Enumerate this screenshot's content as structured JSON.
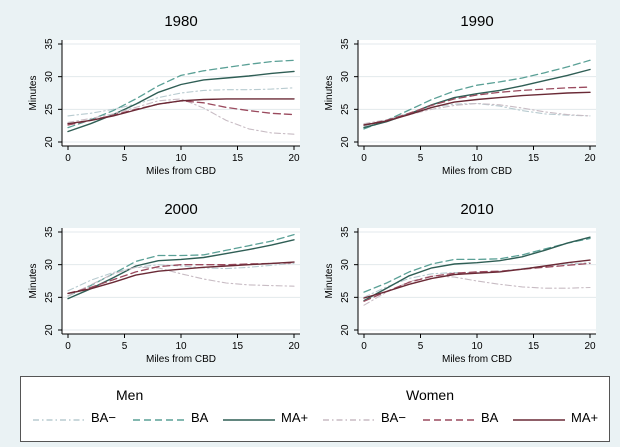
{
  "chart_data": [
    {
      "type": "line",
      "title": "1980",
      "xlabel": "Miles from CBD",
      "ylabel": "Minutes",
      "xlim": [
        0,
        20
      ],
      "ylim": [
        20,
        35
      ],
      "xticks": [
        "0",
        "5",
        "10",
        "15",
        "20"
      ],
      "yticks": [
        "20",
        "25",
        "30",
        "35"
      ],
      "x": [
        0,
        2,
        4,
        6,
        8,
        10,
        12,
        14,
        16,
        18,
        20
      ],
      "series": [
        {
          "name": "Men BA−",
          "values": [
            24.0,
            24.4,
            25.0,
            25.8,
            26.8,
            27.5,
            27.9,
            28.0,
            28.0,
            28.1,
            28.3
          ]
        },
        {
          "name": "Men BA",
          "values": [
            22.2,
            23.4,
            24.8,
            26.6,
            28.6,
            30.2,
            30.9,
            31.4,
            31.9,
            32.3,
            32.5
          ]
        },
        {
          "name": "Men MA+",
          "values": [
            21.6,
            22.8,
            24.2,
            25.8,
            27.6,
            28.8,
            29.5,
            29.8,
            30.1,
            30.5,
            30.8
          ]
        },
        {
          "name": "Women BA−",
          "values": [
            23.0,
            23.6,
            24.3,
            25.3,
            26.3,
            26.6,
            25.2,
            23.3,
            22.0,
            21.4,
            21.2
          ]
        },
        {
          "name": "Women BA",
          "values": [
            22.6,
            23.3,
            24.1,
            25.0,
            25.8,
            26.3,
            26.0,
            25.3,
            24.8,
            24.4,
            24.2
          ]
        },
        {
          "name": "Women MA+",
          "values": [
            22.8,
            23.3,
            24.0,
            24.9,
            25.8,
            26.3,
            26.5,
            26.6,
            26.6,
            26.6,
            26.6
          ]
        }
      ],
      "grid": true
    },
    {
      "type": "line",
      "title": "1990",
      "xlabel": "Miles from CBD",
      "ylabel": "Minutes",
      "xlim": [
        0,
        20
      ],
      "ylim": [
        20,
        35
      ],
      "xticks": [
        "0",
        "5",
        "10",
        "15",
        "20"
      ],
      "yticks": [
        "20",
        "25",
        "30",
        "35"
      ],
      "x": [
        0,
        2,
        4,
        6,
        8,
        10,
        12,
        14,
        16,
        18,
        20
      ],
      "series": [
        {
          "name": "Men BA−",
          "values": [
            22.4,
            23.4,
            24.4,
            25.3,
            25.8,
            25.9,
            25.5,
            24.8,
            24.3,
            24.1,
            24.0
          ]
        },
        {
          "name": "Men BA",
          "values": [
            22.0,
            23.3,
            24.9,
            26.5,
            27.8,
            28.7,
            29.2,
            29.8,
            30.6,
            31.5,
            32.5
          ]
        },
        {
          "name": "Men MA+",
          "values": [
            22.2,
            23.1,
            24.3,
            25.7,
            26.8,
            27.4,
            27.9,
            28.6,
            29.4,
            30.2,
            31.1
          ]
        },
        {
          "name": "Women BA−",
          "values": [
            22.8,
            23.4,
            24.2,
            25.0,
            25.6,
            25.9,
            25.7,
            25.2,
            24.6,
            24.2,
            24.0
          ]
        },
        {
          "name": "Women BA",
          "values": [
            22.6,
            23.3,
            24.4,
            25.6,
            26.6,
            27.2,
            27.6,
            27.9,
            28.1,
            28.3,
            28.4
          ]
        },
        {
          "name": "Women MA+",
          "values": [
            22.6,
            23.2,
            24.2,
            25.3,
            26.1,
            26.5,
            26.8,
            27.1,
            27.3,
            27.5,
            27.6
          ]
        }
      ],
      "grid": true
    },
    {
      "type": "line",
      "title": "2000",
      "xlabel": "Miles from CBD",
      "ylabel": "Minutes",
      "xlim": [
        0,
        20
      ],
      "ylim": [
        20,
        35
      ],
      "xticks": [
        "0",
        "5",
        "10",
        "15",
        "20"
      ],
      "yticks": [
        "20",
        "25",
        "30",
        "35"
      ],
      "x": [
        0,
        2,
        4,
        6,
        8,
        10,
        12,
        14,
        16,
        18,
        20
      ],
      "series": [
        {
          "name": "Men BA−",
          "values": [
            26.0,
            27.6,
            28.8,
            29.6,
            30.0,
            29.8,
            29.5,
            29.4,
            29.6,
            29.9,
            30.2
          ]
        },
        {
          "name": "Men BA",
          "values": [
            25.2,
            26.8,
            28.6,
            30.5,
            31.4,
            31.4,
            31.5,
            32.2,
            32.9,
            33.6,
            34.6
          ]
        },
        {
          "name": "Men MA+",
          "values": [
            24.8,
            26.3,
            28.0,
            29.8,
            30.6,
            30.8,
            31.1,
            31.7,
            32.3,
            33.0,
            33.8
          ]
        },
        {
          "name": "Women BA−",
          "values": [
            25.2,
            26.9,
            28.6,
            29.6,
            29.5,
            28.6,
            27.8,
            27.2,
            26.9,
            26.8,
            26.7
          ]
        },
        {
          "name": "Women BA",
          "values": [
            25.6,
            26.5,
            27.7,
            28.9,
            29.7,
            30.0,
            30.0,
            30.0,
            30.1,
            30.2,
            30.3
          ]
        },
        {
          "name": "Women MA+",
          "values": [
            25.6,
            26.3,
            27.3,
            28.4,
            29.0,
            29.3,
            29.6,
            29.8,
            30.0,
            30.2,
            30.4
          ]
        }
      ],
      "grid": true
    },
    {
      "type": "line",
      "title": "2010",
      "xlabel": "Miles from CBD",
      "ylabel": "Minutes",
      "xlim": [
        0,
        20
      ],
      "ylim": [
        20,
        35
      ],
      "xticks": [
        "0",
        "5",
        "10",
        "15",
        "20"
      ],
      "yticks": [
        "20",
        "25",
        "30",
        "35"
      ],
      "x": [
        0,
        2,
        4,
        6,
        8,
        10,
        12,
        14,
        16,
        18,
        20
      ],
      "series": [
        {
          "name": "Men BA−",
          "values": [
            25.0,
            26.6,
            27.9,
            28.6,
            28.8,
            28.8,
            29.0,
            29.4,
            29.8,
            30.1,
            30.3
          ]
        },
        {
          "name": "Men BA",
          "values": [
            25.8,
            27.2,
            28.9,
            30.1,
            30.8,
            30.8,
            30.9,
            31.5,
            32.4,
            33.3,
            34.0
          ]
        },
        {
          "name": "Men MA+",
          "values": [
            24.5,
            26.4,
            28.3,
            29.5,
            30.1,
            30.3,
            30.6,
            31.2,
            32.2,
            33.3,
            34.2
          ]
        },
        {
          "name": "Women BA−",
          "values": [
            23.8,
            25.8,
            27.4,
            28.3,
            28.1,
            27.5,
            27.0,
            26.6,
            26.4,
            26.4,
            26.5
          ]
        },
        {
          "name": "Women BA",
          "values": [
            24.4,
            25.9,
            27.3,
            28.2,
            28.7,
            28.9,
            29.0,
            29.3,
            29.6,
            29.9,
            30.2
          ]
        },
        {
          "name": "Women MA+",
          "values": [
            24.9,
            25.9,
            27.0,
            27.9,
            28.5,
            28.7,
            28.9,
            29.3,
            29.8,
            30.3,
            30.7
          ]
        }
      ],
      "grid": true
    }
  ],
  "legend": {
    "placement": "bottom",
    "groups": [
      {
        "title": "Men",
        "items": [
          {
            "label": "BA−",
            "color": "#b8cbd0",
            "style": "dashdot"
          },
          {
            "label": "BA",
            "color": "#5aa096",
            "style": "dashed"
          },
          {
            "label": "MA+",
            "color": "#2f5e55",
            "style": "solid"
          }
        ]
      },
      {
        "title": "Women",
        "items": [
          {
            "label": "BA−",
            "color": "#c8bcc4",
            "style": "dashdot"
          },
          {
            "label": "BA",
            "color": "#9a4a5e",
            "style": "dashed"
          },
          {
            "label": "MA+",
            "color": "#6a2a36",
            "style": "solid"
          }
        ]
      }
    ]
  },
  "series_styles": [
    {
      "color": "#b8cbd0",
      "style": "dashdot",
      "width": 1.1
    },
    {
      "color": "#5aa096",
      "style": "dashed",
      "width": 1.3
    },
    {
      "color": "#2f5e55",
      "style": "solid",
      "width": 1.4
    },
    {
      "color": "#c8bcc4",
      "style": "dashdot",
      "width": 1.1
    },
    {
      "color": "#9a4a5e",
      "style": "dashed",
      "width": 1.3
    },
    {
      "color": "#6a2a36",
      "style": "solid",
      "width": 1.4
    }
  ],
  "colors": {
    "background": "#eaf2f4",
    "plot_background": "#ffffff",
    "gridline": "#e3eaec"
  }
}
